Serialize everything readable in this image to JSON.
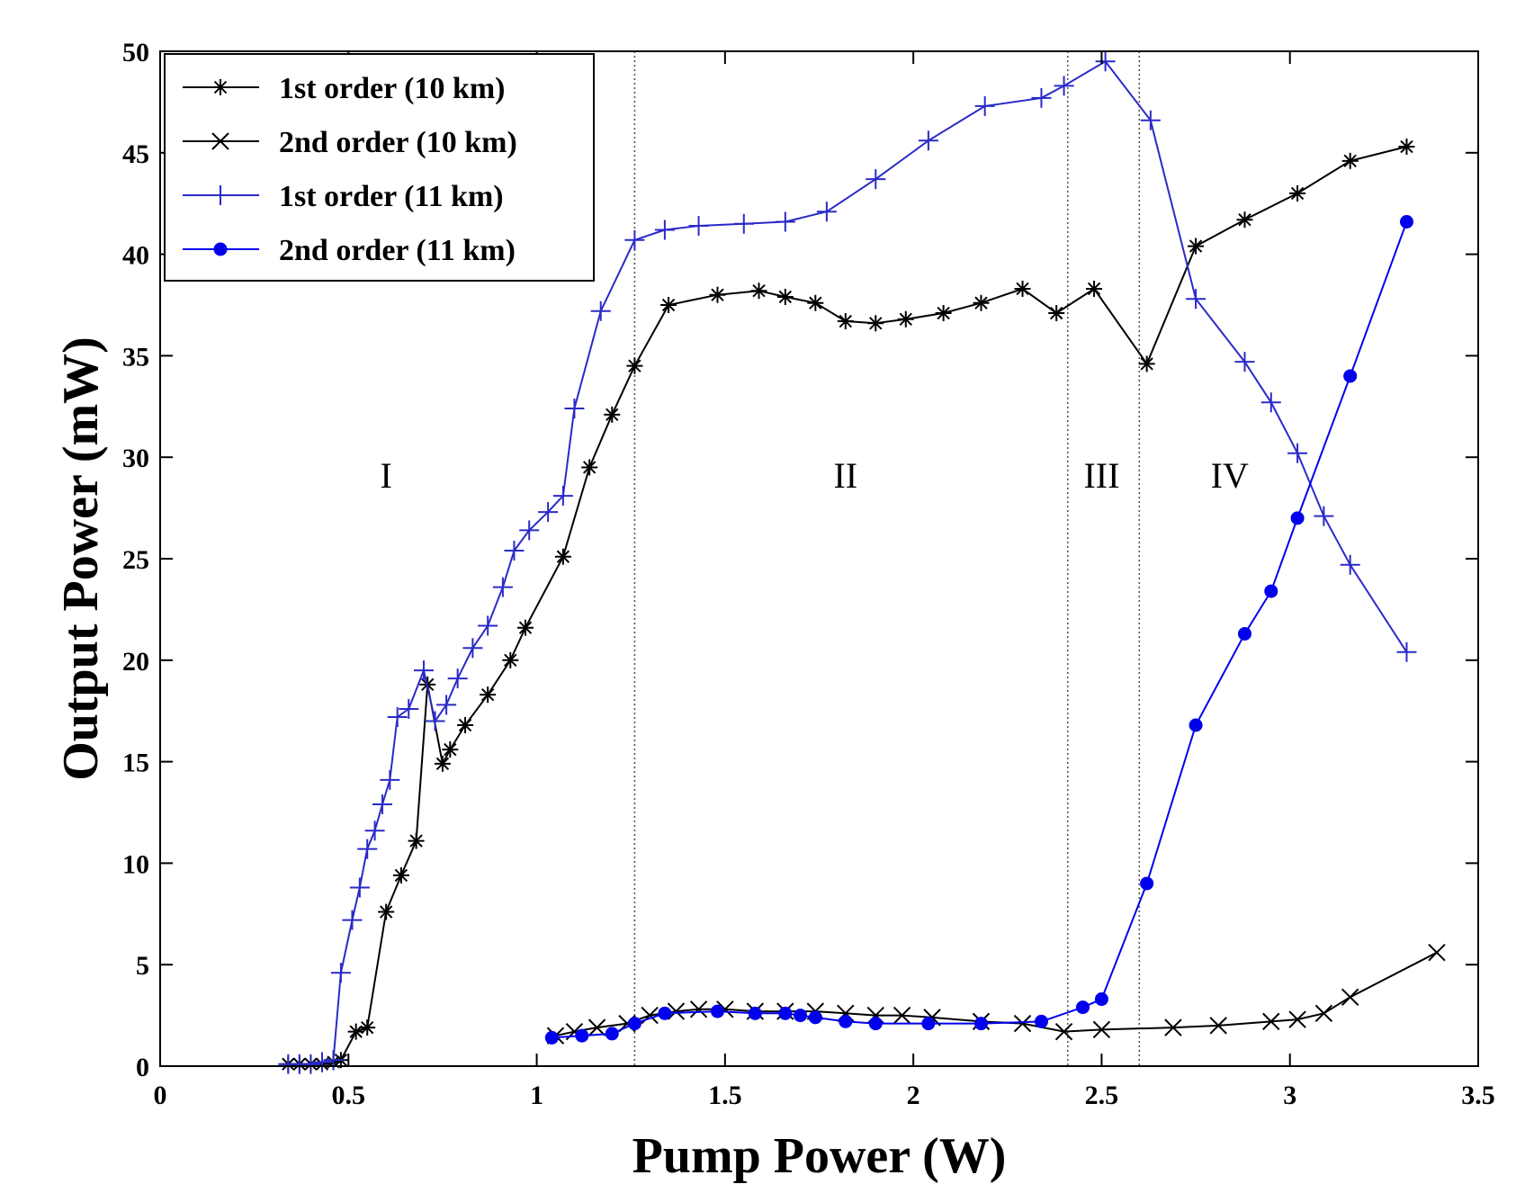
{
  "chart_data": {
    "type": "line",
    "title": "",
    "xlabel": "Pump Power (W)",
    "ylabel": "Output Power (mW)",
    "xlim": [
      0,
      3.5
    ],
    "ylim": [
      0,
      50
    ],
    "xticks": [
      "0",
      "0.5",
      "1",
      "1.5",
      "2",
      "2.5",
      "3",
      "3.5"
    ],
    "yticks": [
      "0",
      "5",
      "10",
      "15",
      "20",
      "25",
      "30",
      "35",
      "40",
      "45",
      "50"
    ],
    "grid": false,
    "legend_position": "top-left",
    "boundaries": [
      1.26,
      2.41,
      2.6
    ],
    "regions": [
      {
        "label": "I",
        "x": 0.6,
        "y": 28.5
      },
      {
        "label": "II",
        "x": 1.82,
        "y": 28.5
      },
      {
        "label": "III",
        "x": 2.5,
        "y": 28.5
      },
      {
        "label": "IV",
        "x": 2.84,
        "y": 28.5
      }
    ],
    "series": [
      {
        "name": "1st order (10 km)",
        "color": "#000000",
        "marker": "asterisk",
        "x": [
          0.34,
          0.37,
          0.4,
          0.43,
          0.46,
          0.48,
          0.52,
          0.55,
          0.6,
          0.64,
          0.68,
          0.71,
          0.75,
          0.77,
          0.81,
          0.87,
          0.93,
          0.97,
          1.07,
          1.14,
          1.2,
          1.26,
          1.35,
          1.48,
          1.59,
          1.66,
          1.74,
          1.82,
          1.9,
          1.98,
          2.08,
          2.18,
          2.29,
          2.38,
          2.48,
          2.62,
          2.75,
          2.88,
          3.02,
          3.16,
          3.31
        ],
        "values": [
          0.1,
          0.1,
          0.1,
          0.1,
          0.2,
          0.3,
          1.7,
          1.9,
          7.6,
          9.4,
          11.1,
          18.8,
          14.9,
          15.6,
          16.8,
          18.3,
          20.0,
          21.6,
          25.1,
          29.5,
          32.1,
          34.5,
          37.5,
          38.0,
          38.2,
          37.9,
          37.6,
          36.7,
          36.6,
          36.8,
          37.1,
          37.6,
          38.3,
          37.1,
          38.3,
          34.6,
          40.4,
          41.7,
          43.0,
          44.6,
          45.3
        ]
      },
      {
        "name": "2nd order (10 km)",
        "color": "#000000",
        "marker": "x",
        "x": [
          1.05,
          1.1,
          1.16,
          1.24,
          1.3,
          1.37,
          1.43,
          1.5,
          1.58,
          1.66,
          1.74,
          1.82,
          1.9,
          1.97,
          2.05,
          2.18,
          2.29,
          2.4,
          2.5,
          2.69,
          2.81,
          2.95,
          3.02,
          3.09,
          3.16,
          3.39
        ],
        "values": [
          1.5,
          1.7,
          1.9,
          2.1,
          2.5,
          2.7,
          2.8,
          2.8,
          2.7,
          2.7,
          2.7,
          2.6,
          2.5,
          2.5,
          2.4,
          2.2,
          2.1,
          1.7,
          1.8,
          1.9,
          2.0,
          2.2,
          2.3,
          2.6,
          3.4,
          5.6
        ]
      },
      {
        "name": "1st order (11 km)",
        "color": "#2a2ac8",
        "marker": "plus",
        "x": [
          0.34,
          0.37,
          0.4,
          0.43,
          0.46,
          0.48,
          0.51,
          0.53,
          0.55,
          0.57,
          0.59,
          0.61,
          0.63,
          0.66,
          0.7,
          0.73,
          0.76,
          0.79,
          0.83,
          0.87,
          0.91,
          0.94,
          0.98,
          1.03,
          1.07,
          1.1,
          1.17,
          1.26,
          1.34,
          1.43,
          1.55,
          1.66,
          1.77,
          1.9,
          2.04,
          2.19,
          2.34,
          2.4,
          2.51,
          2.63,
          2.75,
          2.88,
          2.95,
          3.02,
          3.09,
          3.16,
          3.31
        ],
        "values": [
          0.1,
          0.1,
          0.1,
          0.2,
          0.3,
          4.6,
          7.2,
          8.8,
          10.7,
          11.6,
          12.9,
          14.1,
          17.2,
          17.6,
          19.5,
          17.0,
          17.8,
          19.1,
          20.6,
          21.7,
          23.6,
          25.4,
          26.4,
          27.3,
          28.1,
          32.4,
          37.2,
          40.7,
          41.2,
          41.4,
          41.5,
          41.6,
          42.1,
          43.7,
          45.6,
          47.3,
          47.7,
          48.3,
          49.5,
          46.6,
          37.8,
          34.7,
          32.7,
          30.2,
          27.1,
          24.7,
          20.4
        ]
      },
      {
        "name": "2nd order (11 km)",
        "color": "#0000ee",
        "marker": "dot",
        "x": [
          1.04,
          1.12,
          1.2,
          1.26,
          1.34,
          1.48,
          1.58,
          1.66,
          1.7,
          1.74,
          1.82,
          1.9,
          2.04,
          2.18,
          2.34,
          2.45,
          2.5,
          2.62,
          2.75,
          2.88,
          2.95,
          3.02,
          3.16,
          3.31
        ],
        "values": [
          1.4,
          1.5,
          1.6,
          2.1,
          2.6,
          2.7,
          2.6,
          2.6,
          2.5,
          2.4,
          2.2,
          2.1,
          2.1,
          2.1,
          2.2,
          2.9,
          3.3,
          9.0,
          16.8,
          21.3,
          23.4,
          27.0,
          34.0,
          41.6
        ]
      }
    ]
  }
}
